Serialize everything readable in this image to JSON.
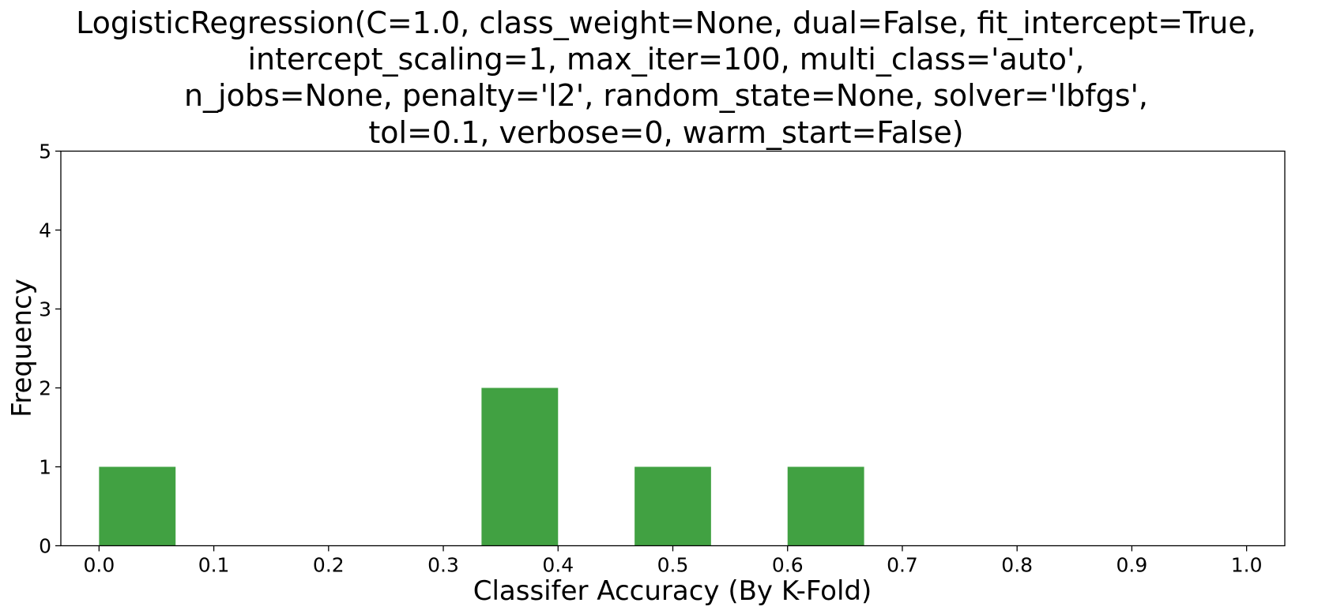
{
  "chart_data": {
    "type": "bar",
    "title_lines": [
      "LogisticRegression(C=1.0, class_weight=None, dual=False, fit_intercept=True,",
      "intercept_scaling=1, max_iter=100, multi_class='auto',",
      "n_jobs=None, penalty='l2', random_state=None, solver='lbfgs',",
      "tol=0.1, verbose=0, warm_start=False)"
    ],
    "xlabel": "Classifer Accuracy (By K-Fold)",
    "ylabel": "Frequency",
    "xlim": [
      0.0,
      1.0
    ],
    "ylim": [
      0,
      5
    ],
    "xticks": [
      "0.0",
      "0.1",
      "0.2",
      "0.3",
      "0.4",
      "0.5",
      "0.6",
      "0.7",
      "0.8",
      "0.9",
      "1.0"
    ],
    "yticks": [
      "0",
      "1",
      "2",
      "3",
      "4",
      "5"
    ],
    "bars": [
      {
        "x0": 0.0,
        "x1": 0.0667,
        "value": 1
      },
      {
        "x0": 0.3333,
        "x1": 0.4,
        "value": 2
      },
      {
        "x0": 0.4667,
        "x1": 0.5333,
        "value": 1
      },
      {
        "x0": 0.6,
        "x1": 0.6667,
        "value": 1
      }
    ],
    "bar_color": "#41a142",
    "grid": false,
    "legend": "none"
  }
}
